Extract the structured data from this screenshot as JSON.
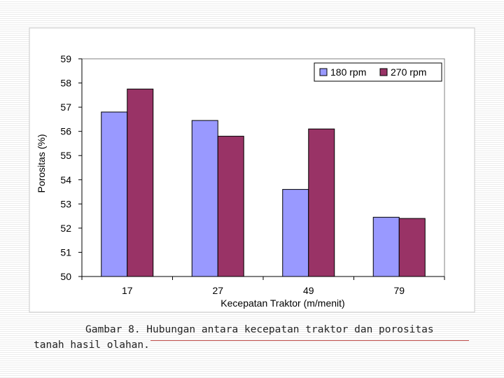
{
  "chart_data": {
    "type": "bar",
    "categories": [
      "17",
      "27",
      "49",
      "79"
    ],
    "series": [
      {
        "name": "180 rpm",
        "values": [
          56.8,
          56.45,
          53.6,
          52.45
        ],
        "color": "#9999ff"
      },
      {
        "name": "270 rpm",
        "values": [
          57.75,
          55.8,
          56.1,
          52.4
        ],
        "color": "#993366"
      }
    ],
    "xlabel": "Kecepatan Traktor (m/menit)",
    "ylabel": "Porositas (%)",
    "ylim": [
      50,
      59
    ],
    "yticks": [
      "50",
      "51",
      "52",
      "53",
      "54",
      "55",
      "56",
      "57",
      "58",
      "59"
    ],
    "grid": false,
    "legend": "top-right",
    "plot_background": "#ffffff"
  },
  "caption": {
    "line1": "Gambar 8. Hubungan antara kecepatan traktor dan porositas",
    "line2": "tanah hasil olahan."
  }
}
